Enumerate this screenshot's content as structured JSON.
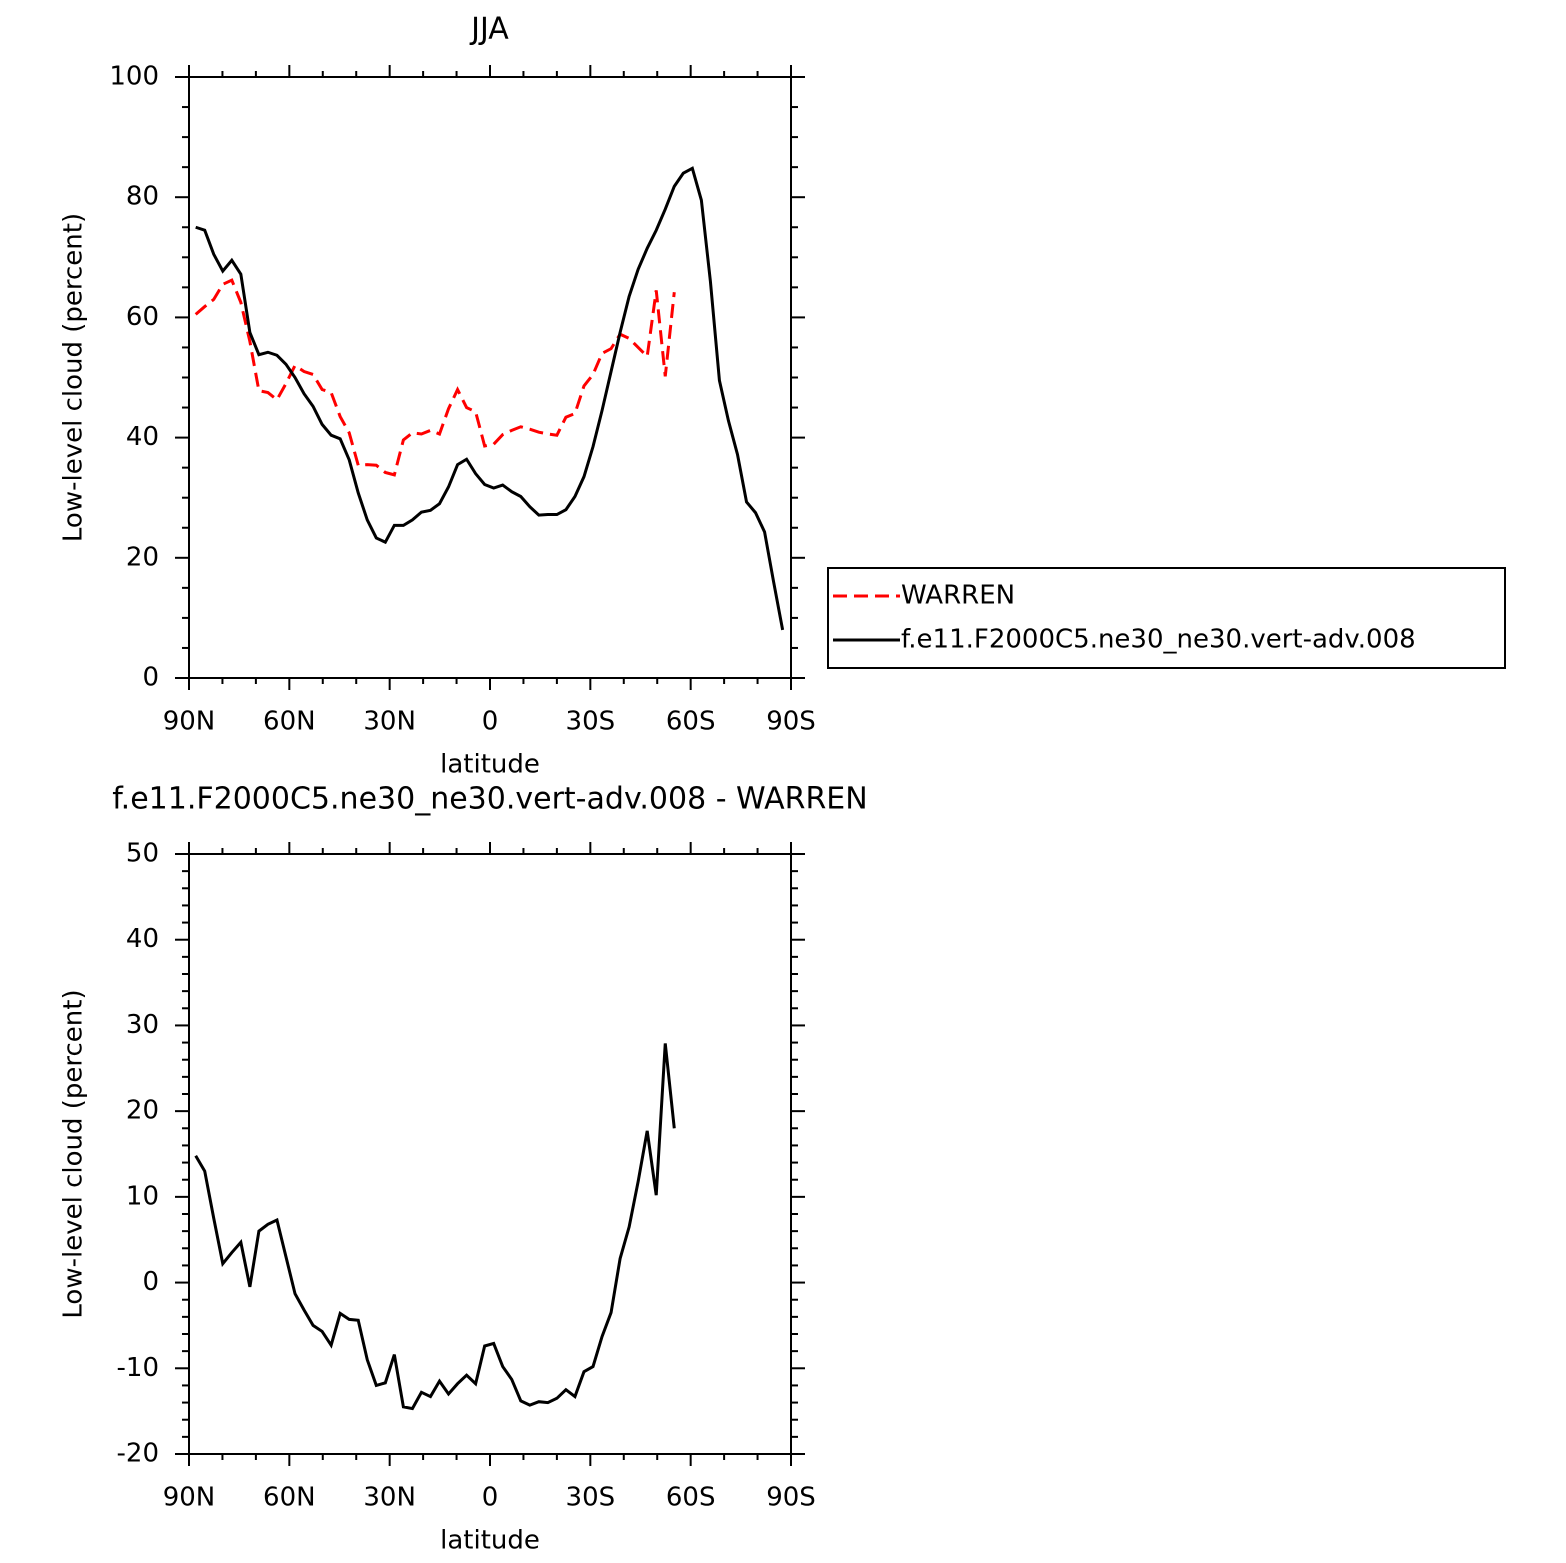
{
  "chart_data": [
    {
      "type": "line",
      "title": "JJA",
      "xlabel": "latitude",
      "ylabel": "Low-level cloud (percent)",
      "x": [
        88,
        85.3,
        82.6,
        79.9,
        77.2,
        74.5,
        71.8,
        69.1,
        66.4,
        63.7,
        61,
        58.3,
        55.6,
        52.9,
        50.2,
        47.5,
        44.8,
        42.1,
        39.4,
        36.7,
        34,
        31.3,
        28.6,
        25.9,
        23.2,
        20.5,
        17.8,
        15.1,
        12.4,
        9.7,
        7,
        4.3,
        1.6,
        -1.1,
        -3.8,
        -6.5,
        -9.2,
        -11.9,
        -14.6,
        -17.3,
        -20,
        -22.7,
        -25.4,
        -28.1,
        -30.8,
        -33.5,
        -36.2,
        -38.9,
        -41.6,
        -44.3,
        -47,
        -49.7,
        -52.4,
        -55.1,
        -57.8,
        -60.5,
        -63.2,
        -65.9,
        -68.6,
        -71.3,
        -74,
        -76.7,
        -79.4,
        -82.1,
        -84.8,
        -87.5
      ],
      "series": [
        {
          "name": "WARREN",
          "color": "#ff0000",
          "dash": true,
          "values": [
            60.5,
            61.8,
            63,
            65.5,
            66.2,
            62.5,
            56,
            47.8,
            47.5,
            46.3,
            49,
            52,
            51,
            50.5,
            48,
            47.5,
            43.5,
            40.8,
            35.4,
            35.5,
            35.4,
            34.2,
            33.8,
            39.6,
            40.8,
            40.6,
            41.2,
            40.6,
            44.8,
            48,
            45,
            44.3,
            38.6,
            38.9,
            40.5,
            41.2,
            41.8,
            41.4,
            40.9,
            40.6,
            40.4,
            43.4,
            44,
            48.6,
            50.5,
            54,
            54.8,
            57.2,
            56.5,
            55,
            53.5,
            64.5,
            50.2,
            64.2,
            null,
            null,
            null,
            null,
            null,
            null,
            null,
            null,
            null,
            null,
            null,
            null
          ]
        },
        {
          "name": "f.e11.F2000C5.ne30_ne30.vert-adv.008",
          "color": "#000000",
          "dash": false,
          "values": [
            75,
            74.5,
            70.5,
            67.7,
            69.5,
            67.2,
            57.5,
            53.8,
            54.2,
            53.7,
            52.2,
            50,
            47.3,
            45.2,
            42.2,
            40.4,
            39.8,
            36.3,
            30.8,
            26.3,
            23.3,
            22.6,
            25.4,
            25.4,
            26.3,
            27.6,
            27.9,
            29,
            31.8,
            35.5,
            36.4,
            34,
            32.2,
            31.6,
            32.1,
            31,
            30.2,
            28.5,
            27.1,
            27.2,
            27.2,
            28,
            30.2,
            33.5,
            38.5,
            44.5,
            51,
            57.5,
            63.5,
            68,
            71.5,
            74.5,
            78,
            81.8,
            84,
            84.8,
            79.5,
            66,
            49.5,
            42.8,
            37.2,
            29.3,
            27.5,
            24.3,
            16,
            8
          ]
        }
      ],
      "xlim": [
        90,
        -90
      ],
      "xticks": [
        {
          "value": 90,
          "label": "90N"
        },
        {
          "value": 60,
          "label": "60N"
        },
        {
          "value": 30,
          "label": "30N"
        },
        0,
        {
          "value": -30,
          "label": "30S"
        },
        {
          "value": -60,
          "label": "60S"
        },
        {
          "value": -90,
          "label": "90S"
        }
      ],
      "ylim": [
        0,
        100
      ],
      "yticks": [
        0,
        20,
        40,
        60,
        80,
        100
      ],
      "legend": "right"
    },
    {
      "type": "line",
      "title": "f.e11.F2000C5.ne30_ne30.vert-adv.008 - WARREN",
      "xlabel": "latitude",
      "ylabel": "Low-level cloud (percent)",
      "x": [
        88,
        85.3,
        82.6,
        79.9,
        77.2,
        74.5,
        71.8,
        69.1,
        66.4,
        63.7,
        61,
        58.3,
        55.6,
        52.9,
        50.2,
        47.5,
        44.8,
        42.1,
        39.4,
        36.7,
        34,
        31.3,
        28.6,
        25.9,
        23.2,
        20.5,
        17.8,
        15.1,
        12.4,
        9.7,
        7,
        4.3,
        1.6,
        -1.1,
        -3.8,
        -6.5,
        -9.2,
        -11.9,
        -14.6,
        -17.3,
        -20,
        -22.7,
        -25.4,
        -28.1,
        -30.8,
        -33.5,
        -36.2,
        -38.9,
        -41.6,
        -44.3,
        -47,
        -49.7,
        -52.4,
        -55.1,
        -57.8,
        -60.5,
        -63.2,
        -65.9,
        -68.6,
        -71.3,
        -74,
        -76.7,
        -79.4,
        -82.1,
        -84.8,
        -87.5
      ],
      "color": "#000000",
      "values": [
        14.8,
        13,
        7.5,
        2.2,
        3.5,
        4.7,
        -0.5,
        6,
        6.8,
        7.3,
        3,
        -1.3,
        -3.2,
        -5,
        -5.7,
        -7.3,
        -3.6,
        -4.3,
        -4.4,
        -9,
        -12,
        -11.7,
        -8.4,
        -14.5,
        -14.7,
        -12.8,
        -13.3,
        -11.5,
        -13,
        -11.8,
        -10.8,
        -11.8,
        -7.4,
        -7.1,
        -9.8,
        -11.3,
        -13.8,
        -14.3,
        -13.9,
        -14,
        -13.5,
        -12.5,
        -13.3,
        -10.4,
        -9.8,
        -6.3,
        -3.5,
        2.8,
        6.5,
        11.8,
        17.7,
        10.2,
        27.9,
        18,
        null,
        null,
        null,
        null,
        null,
        null,
        null,
        null,
        null,
        null,
        null,
        null
      ],
      "xlim": [
        90,
        -90
      ],
      "xticks": [
        {
          "value": 90,
          "label": "90N"
        },
        {
          "value": 60,
          "label": "60N"
        },
        {
          "value": 30,
          "label": "30N"
        },
        0,
        {
          "value": -30,
          "label": "30S"
        },
        {
          "value": -60,
          "label": "60S"
        },
        {
          "value": -90,
          "label": "90S"
        }
      ],
      "ylim": [
        -20,
        50
      ],
      "yticks": [
        -20,
        -10,
        0,
        10,
        20,
        30,
        40,
        50
      ]
    }
  ]
}
